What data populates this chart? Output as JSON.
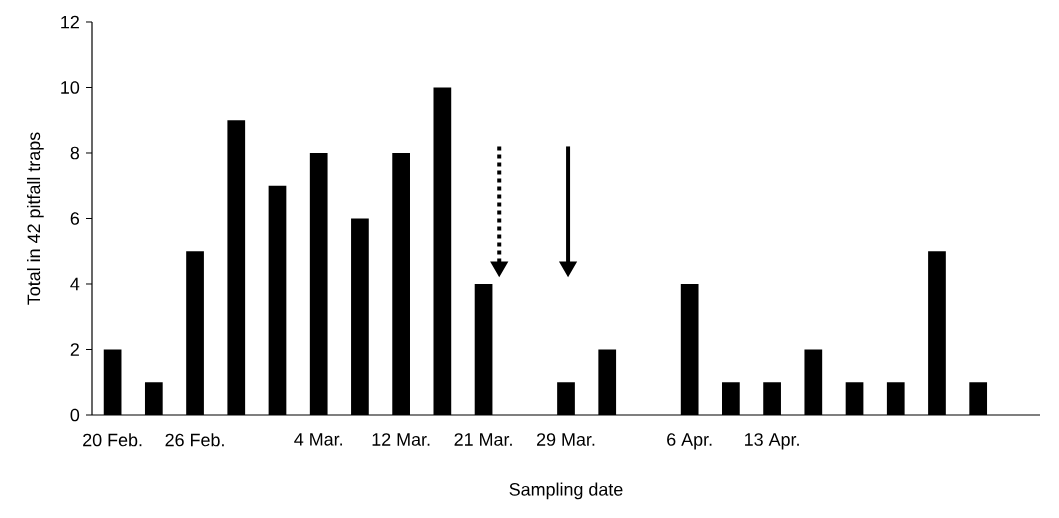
{
  "chart_data": {
    "type": "bar",
    "xlabel": "Sampling date",
    "ylabel": "Total in 42 pitfall traps",
    "categories": [
      "20 Feb.",
      null,
      "26 Feb.",
      null,
      null,
      "4 Mar.",
      null,
      "12 Mar.",
      null,
      "21 Mar.",
      null,
      "29 Mar.",
      null,
      null,
      "6 Apr.",
      null,
      "13 Apr.",
      null,
      null,
      null,
      null,
      null
    ],
    "values": [
      2,
      1,
      5,
      9,
      7,
      8,
      6,
      8,
      10,
      4,
      0,
      1,
      2,
      0,
      4,
      1,
      1,
      2,
      1,
      1,
      5,
      1
    ],
    "color": "#000000",
    "ylim": [
      0,
      12
    ],
    "yticks": [
      0,
      2,
      4,
      6,
      8,
      10,
      12
    ]
  }
}
